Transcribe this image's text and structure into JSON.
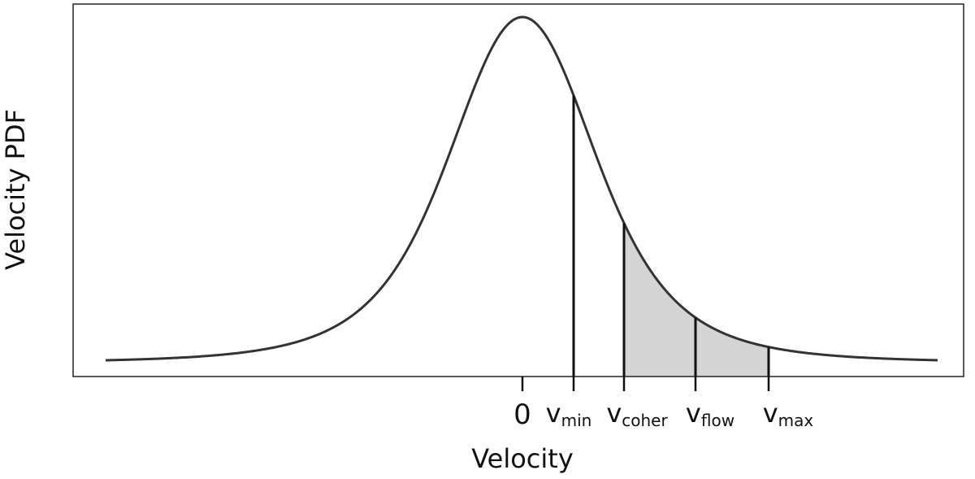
{
  "chart_data": {
    "type": "area",
    "xlabel": "Velocity",
    "ylabel": "Velocity PDF",
    "grid": false,
    "legend": "none",
    "colors": {
      "curve": "#333333",
      "shade": "#d4d4d4",
      "axes": "#222222",
      "markers": "#111111"
    },
    "markers": [
      {
        "id": "zero",
        "label": "0",
        "subscript": ""
      },
      {
        "id": "vmin",
        "label": "v",
        "subscript": "min"
      },
      {
        "id": "vcoher",
        "label": "v",
        "subscript": "coher"
      },
      {
        "id": "vflow",
        "label": "v",
        "subscript": "flow"
      },
      {
        "id": "vmax",
        "label": "v",
        "subscript": "max"
      }
    ],
    "shaded_region": {
      "from": "vcoher",
      "to": "vmax"
    }
  }
}
